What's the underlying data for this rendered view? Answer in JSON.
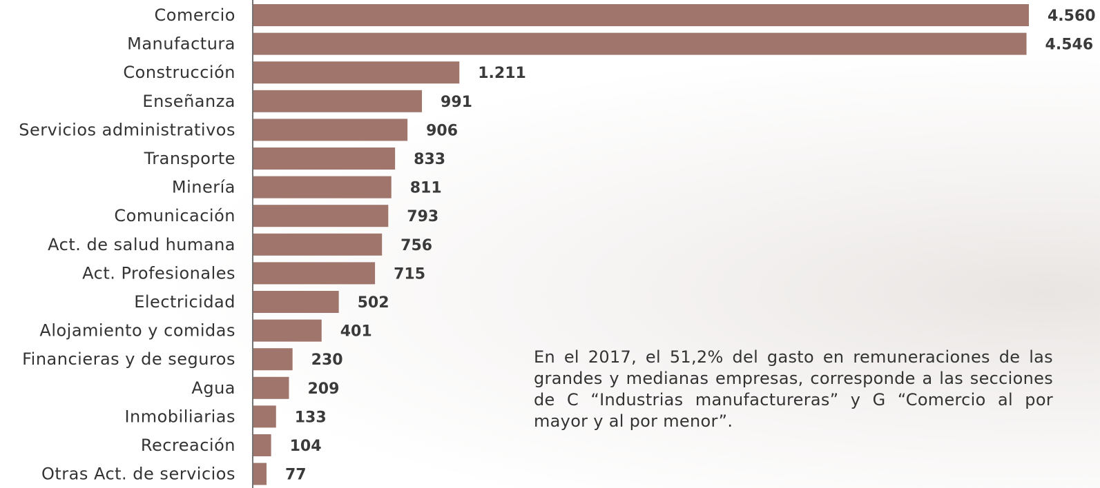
{
  "chart_data": {
    "type": "bar",
    "orientation": "horizontal",
    "categories": [
      "Comercio",
      "Manufactura",
      "Construcción",
      "Enseñanza",
      "Servicios administrativos",
      "Transporte",
      "Minería",
      "Comunicación",
      "Act. de salud humana",
      "Act. Profesionales",
      "Electricidad",
      "Alojamiento y comidas",
      "Financieras y de seguros",
      "Agua",
      "Inmobiliarias",
      "Recreación",
      "Otras Act. de servicios"
    ],
    "values": [
      4560,
      4546,
      1211,
      991,
      906,
      833,
      811,
      793,
      756,
      715,
      502,
      401,
      230,
      209,
      133,
      104,
      77
    ],
    "value_labels": [
      "4.560",
      "4.546",
      "1.211",
      "991",
      "906",
      "833",
      "811",
      "793",
      "756",
      "715",
      "502",
      "401",
      "230",
      "209",
      "133",
      "104",
      "77"
    ],
    "xlim": [
      0,
      4560
    ],
    "grid": false,
    "legend": "none",
    "bar_color": "#a0756b",
    "axis_color": "#444444"
  },
  "annotation": {
    "text": "En el 2017, el 51,2% del gasto en remuneraciones de las grandes y medianas empresas, corresponde a las secciones de C “Industrias manufactureras” y G “Comercio al por mayor y al por menor”."
  }
}
